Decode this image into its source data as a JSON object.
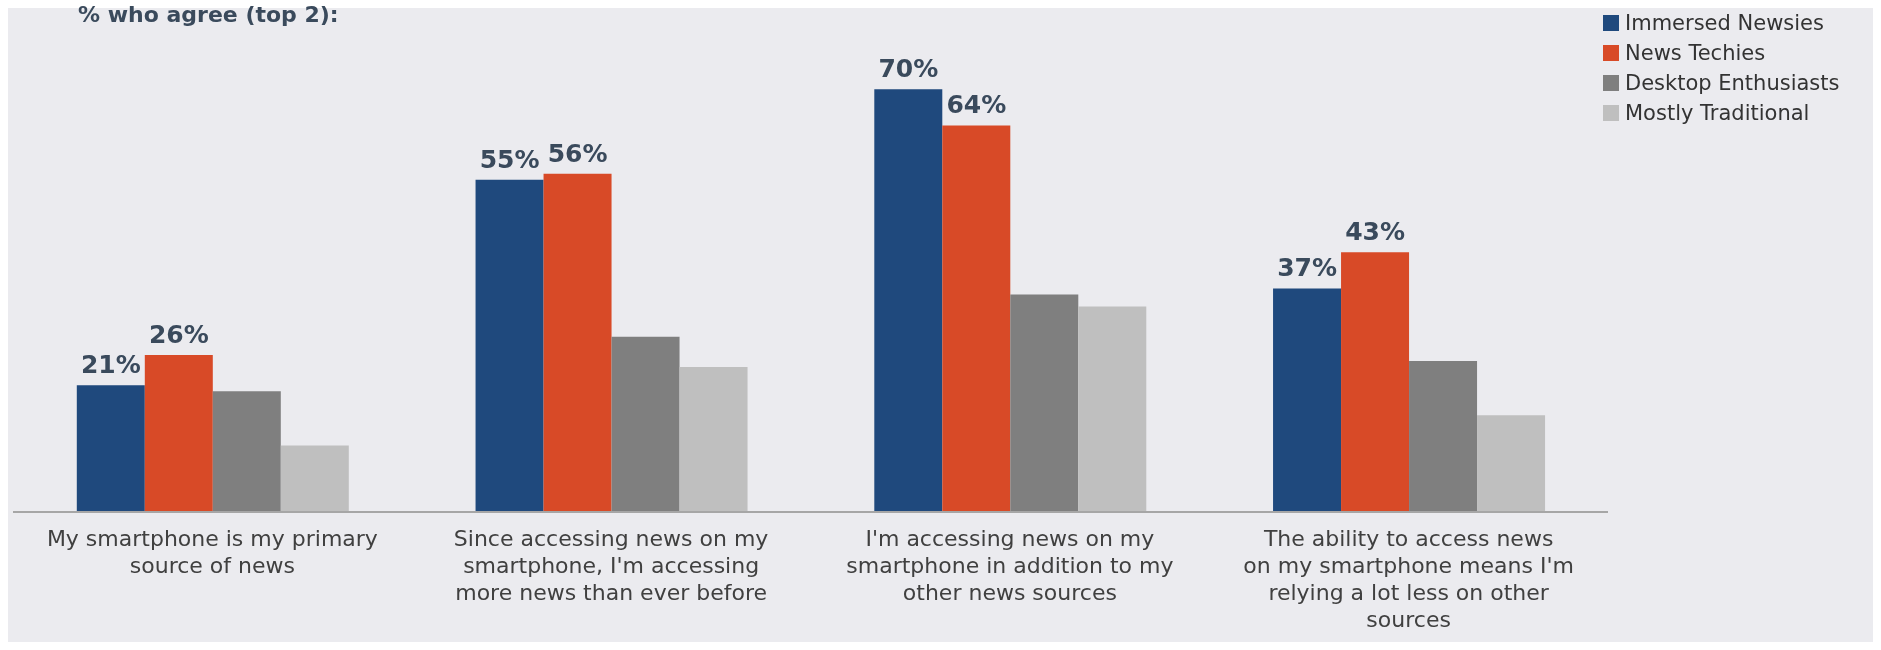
{
  "chart_data": {
    "type": "bar",
    "title": "% who agree (top 2):",
    "categories": [
      "My smartphone is my primary source of news",
      "Since accessing news on my smartphone, I'm accessing more news than ever before",
      "I'm accessing news on my smartphone in addition to my other news sources",
      "The ability to access news on my smartphone means I'm relying a lot less on other sources"
    ],
    "series": [
      {
        "name": "Immersed Newsies",
        "color": "#1f497d",
        "values": [
          21,
          55,
          70,
          37
        ],
        "value_labels": [
          "21%",
          "55%",
          "70%",
          "37%"
        ]
      },
      {
        "name": "News Techies",
        "color": "#d84a27",
        "values": [
          26,
          56,
          64,
          43
        ],
        "value_labels": [
          "26%",
          "56%",
          "64%",
          "43%"
        ]
      },
      {
        "name": "Desktop Enthusiasts",
        "color": "#7f7f7f",
        "values": [
          20,
          29,
          36,
          25
        ]
      },
      {
        "name": "Mostly Traditional",
        "color": "#bfbfbf",
        "values": [
          11,
          24,
          34,
          16
        ]
      }
    ],
    "legend": "top right",
    "grid": false
  }
}
